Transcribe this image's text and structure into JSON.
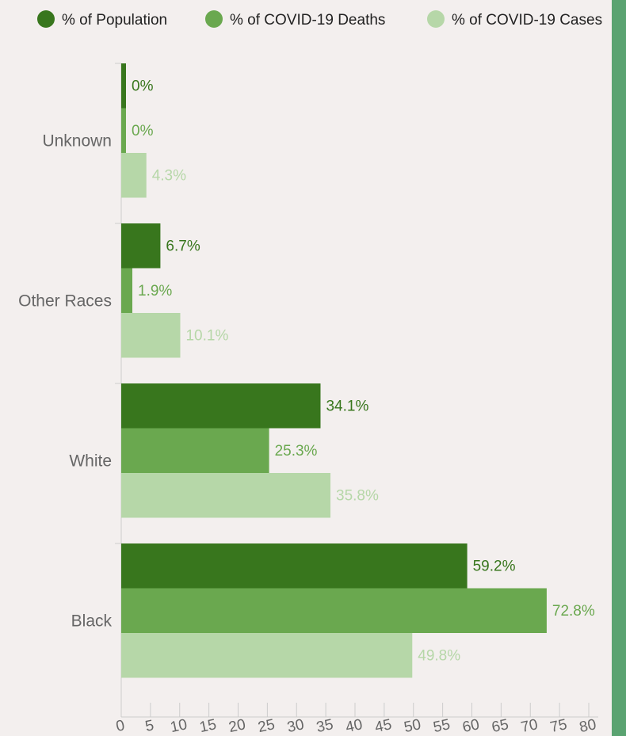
{
  "chart_data": {
    "type": "bar",
    "orientation": "horizontal",
    "categories": [
      "Unknown",
      "Other Races",
      "White",
      "Black"
    ],
    "series": [
      {
        "name": "% of Population",
        "values": [
          0,
          6.7,
          34.1,
          59.2
        ],
        "labels": [
          "0%",
          "6.7%",
          "34.1%",
          "59.2%"
        ],
        "color": "#38761d"
      },
      {
        "name": "% of COVID-19 Deaths",
        "values": [
          0,
          1.9,
          25.3,
          72.8
        ],
        "labels": [
          "0%",
          "1.9%",
          "25.3%",
          "72.8%"
        ],
        "color": "#6aa84f"
      },
      {
        "name": "% of COVID-19 Cases",
        "values": [
          4.3,
          10.1,
          35.8,
          49.8
        ],
        "labels": [
          "4.3%",
          "10.1%",
          "35.8%",
          "49.8%"
        ],
        "color": "#b6d7a8"
      }
    ],
    "x_ticks": [
      "0",
      "5",
      "10",
      "15",
      "20",
      "25",
      "30",
      "35",
      "40",
      "45",
      "50",
      "55",
      "60",
      "65",
      "70",
      "75",
      "80"
    ],
    "xlim": [
      0,
      80
    ],
    "legend_position": "top",
    "grid": false,
    "background_color": "#f3efee",
    "side_panel_color": "#5aa371"
  }
}
